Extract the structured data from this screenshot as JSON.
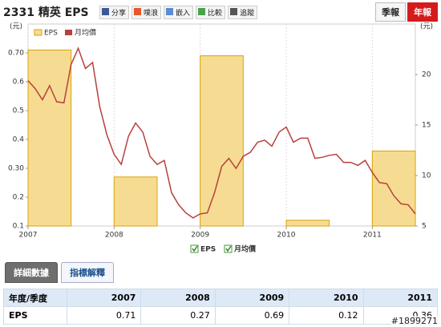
{
  "header": {
    "title": "2331 精英 EPS",
    "buttons": [
      "分享",
      "噗浪",
      "嵌入",
      "比較",
      "追蹤"
    ],
    "tabs": [
      "季報",
      "年報"
    ]
  },
  "chart_data": {
    "type": "bar-line",
    "y_label": "(元)",
    "y2_label": "(元)",
    "xlim": [
      2007,
      2011.5
    ],
    "xticks": [
      2007,
      2008,
      2009,
      2010,
      2011
    ],
    "ylim": [
      0.1,
      0.8
    ],
    "yticks": [
      0.1,
      0.2,
      {
        "value": 0.3,
        "label": "0.30"
      },
      0.4,
      0.5,
      0.6,
      {
        "value": 0.7,
        "label": "0.70"
      }
    ],
    "y2lim": [
      5,
      25
    ],
    "y2ticks": [
      5,
      10,
      15,
      20
    ],
    "grid": "x",
    "legend": "top-left",
    "series": [
      {
        "name": "EPS",
        "type": "bar",
        "color": "#f6dc93",
        "x": [
          2007,
          2008,
          2009,
          2010,
          2011
        ],
        "values": [
          0.71,
          0.27,
          0.69,
          0.12,
          0.36
        ]
      },
      {
        "name": "月均價",
        "type": "line",
        "axis": "y2",
        "color": "#b8403c",
        "x": [
          2007,
          2007.083,
          2007.167,
          2007.25,
          2007.333,
          2007.417,
          2007.5,
          2007.583,
          2007.667,
          2007.75,
          2007.833,
          2007.917,
          2008,
          2008.083,
          2008.167,
          2008.25,
          2008.333,
          2008.417,
          2008.5,
          2008.583,
          2008.667,
          2008.75,
          2008.833,
          2008.917,
          2009,
          2009.083,
          2009.167,
          2009.25,
          2009.333,
          2009.417,
          2009.5,
          2009.583,
          2009.667,
          2009.75,
          2009.833,
          2009.917,
          2010,
          2010.083,
          2010.167,
          2010.25,
          2010.333,
          2010.417,
          2010.5,
          2010.583,
          2010.667,
          2010.75,
          2010.833,
          2010.917,
          2011,
          2011.083,
          2011.167,
          2011.25,
          2011.333,
          2011.417,
          2011.5
        ],
        "values": [
          19.4,
          18.6,
          17.5,
          18.9,
          17.3,
          17.2,
          21.0,
          22.6,
          20.6,
          21.2,
          16.8,
          14.0,
          12.1,
          11.1,
          13.9,
          15.2,
          14.3,
          11.9,
          11.1,
          11.5,
          8.3,
          7.1,
          6.3,
          5.8,
          6.2,
          6.3,
          8.3,
          10.9,
          11.7,
          10.7,
          11.9,
          12.3,
          13.3,
          13.5,
          12.9,
          14.3,
          14.8,
          13.3,
          13.7,
          13.7,
          11.7,
          11.8,
          12.0,
          12.1,
          11.3,
          11.3,
          11.0,
          11.5,
          10.3,
          9.3,
          9.2,
          8.0,
          7.2,
          7.1,
          6.2
        ]
      }
    ]
  },
  "subtabs": [
    "詳細數據",
    "指標解釋"
  ],
  "table": {
    "header": [
      "年度/季度",
      "2007",
      "2008",
      "2009",
      "2010",
      "2011"
    ],
    "rows": [
      [
        "EPS",
        "0.71",
        "0.27",
        "0.69",
        "0.12",
        "0.36"
      ]
    ]
  },
  "watermark": "#1899271"
}
